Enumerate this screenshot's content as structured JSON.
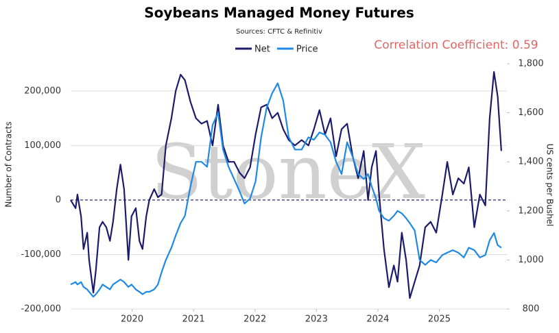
{
  "chart_data": {
    "type": "line",
    "title": "Soybeans Managed Money Futures",
    "subtitle": "Sources: CFTC & Refinitiv",
    "annotation": "Correlation Coefficient: 0.59",
    "watermark": "StoneX",
    "ylabel": "Number of Contracts",
    "y2label": "US cents per Bushel",
    "xlim": [
      2019,
      2026.1
    ],
    "xticks": [
      2020,
      2021,
      2022,
      2023,
      2024,
      2025
    ],
    "ylim": [
      -200000,
      250000
    ],
    "yticks": [
      {
        "value": -200000,
        "label": "-200,000"
      },
      {
        "value": -100000,
        "label": "-100,000"
      },
      0,
      {
        "value": 100000,
        "label": "100,000"
      },
      {
        "value": 200000,
        "label": "200,000"
      }
    ],
    "y2lim": [
      800,
      1800
    ],
    "y2ticks": [
      800,
      {
        "value": 1000,
        "label": "1,000"
      },
      {
        "value": 1200,
        "label": "1,200"
      },
      {
        "value": 1400,
        "label": "1,400"
      },
      {
        "value": 1600,
        "label": "1,600"
      },
      {
        "value": 1800,
        "label": "1,800"
      }
    ],
    "grid": true,
    "legend": "top",
    "x": [
      2019.0,
      2019.08,
      2019.11,
      2019.17,
      2019.21,
      2019.27,
      2019.3,
      2019.37,
      2019.41,
      2019.47,
      2019.52,
      2019.58,
      2019.64,
      2019.69,
      2019.75,
      2019.81,
      2019.87,
      2019.94,
      2019.99,
      2020.06,
      2020.12,
      2020.17,
      2020.23,
      2020.28,
      2020.36,
      2020.42,
      2020.48,
      2020.55,
      2020.64,
      2020.71,
      2020.79,
      2020.86,
      2020.95,
      2021.04,
      2021.13,
      2021.22,
      2021.31,
      2021.4,
      2021.48,
      2021.57,
      2021.66,
      2021.75,
      2021.83,
      2021.92,
      2022.01,
      2022.1,
      2022.19,
      2022.28,
      2022.37,
      2022.46,
      2022.55,
      2022.65,
      2022.76,
      2022.87,
      2022.96,
      2023.05,
      2023.14,
      2023.23,
      2023.32,
      2023.41,
      2023.5,
      2023.59,
      2023.68,
      2023.77,
      2023.84,
      2023.9,
      2023.97,
      2024.02,
      2024.1,
      2024.18,
      2024.26,
      2024.32,
      2024.39,
      2024.46,
      2024.52,
      2024.6,
      2024.68,
      2024.77,
      2024.86,
      2024.95,
      2025.05,
      2025.13,
      2025.22,
      2025.31,
      2025.4,
      2025.48,
      2025.57,
      2025.66,
      2025.75,
      2025.82,
      2025.89,
      2025.95,
      2026.01
    ],
    "series": [
      {
        "name": "Net",
        "color": "#1b1a6b",
        "values": [
          0,
          -15000,
          10000,
          -30000,
          -90000,
          -60000,
          -110000,
          -170000,
          -130000,
          -50000,
          -40000,
          -50000,
          -75000,
          -40000,
          20000,
          65000,
          20000,
          -110000,
          -30000,
          -15000,
          -75000,
          -90000,
          -30000,
          0,
          20000,
          5000,
          10000,
          100000,
          150000,
          200000,
          230000,
          220000,
          180000,
          150000,
          140000,
          145000,
          100000,
          175000,
          100000,
          70000,
          70000,
          50000,
          40000,
          60000,
          120000,
          170000,
          175000,
          150000,
          160000,
          130000,
          110000,
          100000,
          110000,
          100000,
          130000,
          165000,
          120000,
          150000,
          80000,
          130000,
          140000,
          80000,
          40000,
          90000,
          0,
          60000,
          90000,
          10000,
          -90000,
          -160000,
          -120000,
          -150000,
          -60000,
          -110000,
          -180000,
          -150000,
          -120000,
          -50000,
          -40000,
          -60000,
          10000,
          70000,
          10000,
          40000,
          30000,
          60000,
          -50000,
          10000,
          -10000,
          150000,
          235000,
          190000,
          90000
        ]
      },
      {
        "name": "Price",
        "color": "#1e88e5",
        "axis": "y2",
        "values": [
          900,
          910,
          900,
          910,
          890,
          880,
          870,
          850,
          860,
          880,
          900,
          890,
          880,
          900,
          910,
          920,
          910,
          890,
          900,
          880,
          870,
          860,
          870,
          870,
          880,
          900,
          950,
          1000,
          1050,
          1100,
          1150,
          1180,
          1300,
          1400,
          1400,
          1380,
          1550,
          1600,
          1450,
          1380,
          1330,
          1280,
          1230,
          1250,
          1320,
          1500,
          1620,
          1680,
          1720,
          1650,
          1500,
          1450,
          1450,
          1500,
          1490,
          1520,
          1510,
          1480,
          1400,
          1350,
          1480,
          1420,
          1350,
          1330,
          1350,
          1300,
          1250,
          1200,
          1170,
          1160,
          1180,
          1200,
          1190,
          1170,
          1150,
          1120,
          1000,
          980,
          1000,
          990,
          1020,
          1030,
          1040,
          1030,
          1010,
          1050,
          1040,
          1010,
          1020,
          1080,
          1110,
          1060,
          1050
        ]
      }
    ]
  }
}
